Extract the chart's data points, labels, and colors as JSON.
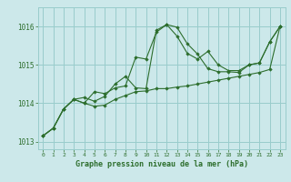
{
  "title": "Graphe pression niveau de la mer (hPa)",
  "bg_color": "#cce8ea",
  "grid_color": "#99cccc",
  "line_color": "#2d6e2d",
  "marker_color": "#2d6e2d",
  "xlim": [
    -0.5,
    23.5
  ],
  "ylim": [
    1012.8,
    1016.5
  ],
  "xticks": [
    0,
    1,
    2,
    3,
    4,
    5,
    6,
    7,
    8,
    9,
    10,
    11,
    12,
    13,
    14,
    15,
    16,
    17,
    18,
    19,
    20,
    21,
    22,
    23
  ],
  "yticks": [
    1013,
    1014,
    1015,
    1016
  ],
  "series": [
    [
      1013.15,
      1013.35,
      1013.85,
      1014.1,
      1014.0,
      1014.3,
      1014.25,
      1014.4,
      1014.45,
      1015.2,
      1015.15,
      1015.85,
      1016.05,
      1015.75,
      1015.3,
      1015.15,
      1015.35,
      1015.0,
      1014.85,
      1014.85,
      1015.0,
      1015.05,
      1015.6,
      1016.0
    ],
    [
      1013.15,
      1013.35,
      1013.85,
      1014.1,
      1014.0,
      1013.92,
      1013.95,
      1014.1,
      1014.2,
      1014.3,
      1014.32,
      1014.38,
      1014.38,
      1014.42,
      1014.45,
      1014.5,
      1014.55,
      1014.6,
      1014.65,
      1014.7,
      1014.75,
      1014.8,
      1014.88,
      1016.0
    ],
    [
      1013.15,
      1013.35,
      1013.85,
      1014.1,
      1014.15,
      1014.05,
      1014.18,
      1014.5,
      1014.7,
      1014.4,
      1014.38,
      1015.9,
      1016.05,
      1015.98,
      1015.55,
      1015.28,
      1014.9,
      1014.82,
      1014.82,
      1014.8,
      1015.0,
      1015.05,
      1015.6,
      1016.0
    ]
  ]
}
